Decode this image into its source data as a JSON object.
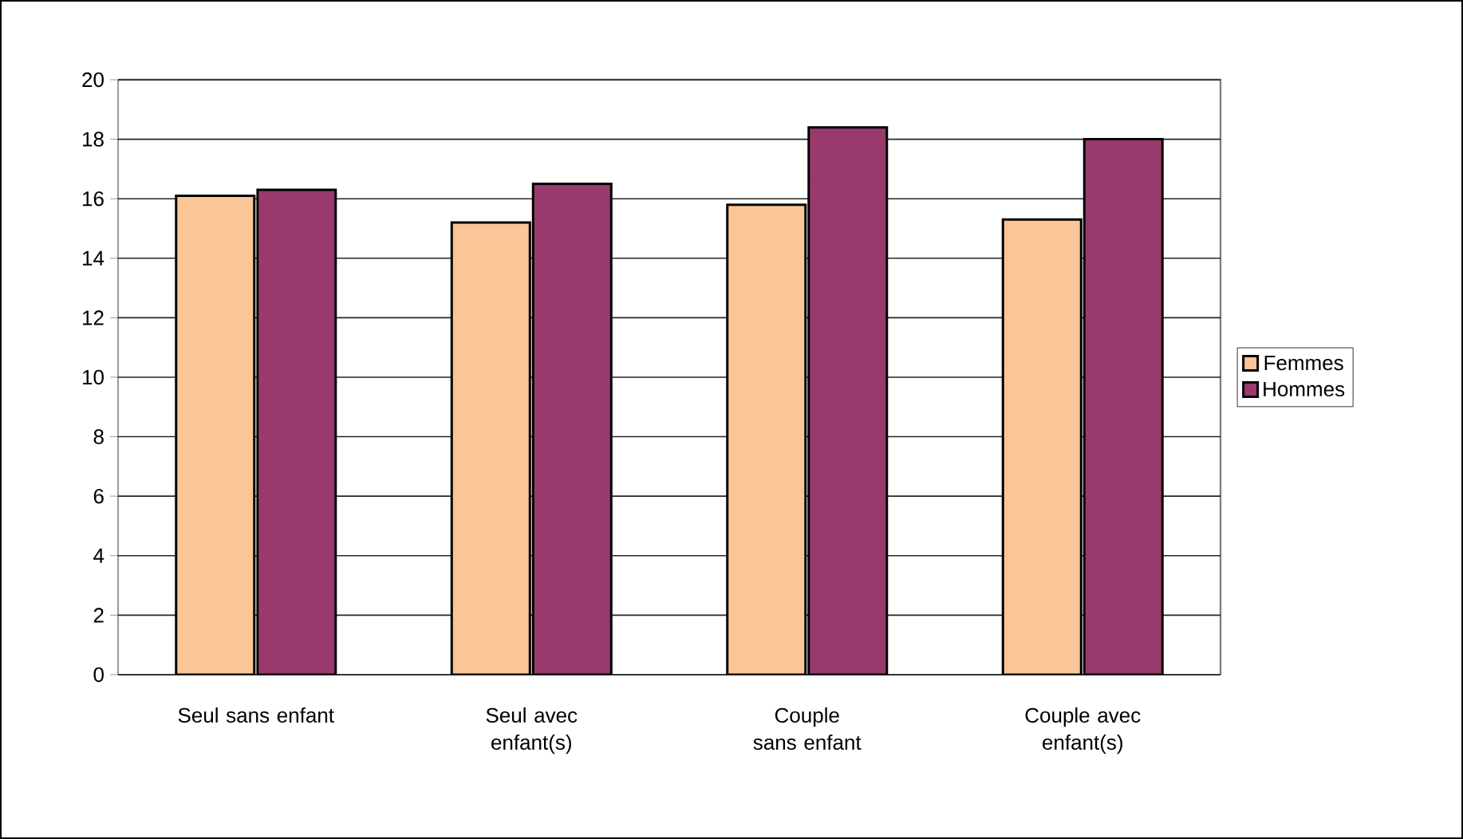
{
  "chart_data": {
    "type": "bar",
    "categories": [
      "Seul sans enfant",
      "Seul avec enfant(s)",
      "Couple sans enfant",
      "Couple avec enfant(s)"
    ],
    "series": [
      {
        "name": "Femmes",
        "color": "#fcc597",
        "values": [
          16.1,
          15.2,
          15.8,
          15.3
        ]
      },
      {
        "name": "Hommes",
        "color": "#993a6d",
        "values": [
          16.3,
          16.5,
          18.4,
          18.0
        ]
      }
    ],
    "ylim": [
      0,
      20
    ],
    "yticks": [
      0,
      2,
      4,
      6,
      8,
      10,
      12,
      14,
      16,
      18,
      20
    ],
    "grid": "y",
    "legend": "right"
  }
}
